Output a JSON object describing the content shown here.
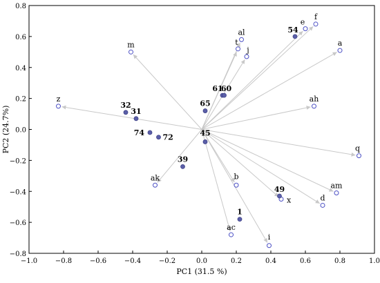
{
  "chart_data": {
    "type": "scatter",
    "xlabel": "PC1 (31.5 %)",
    "ylabel": "PC2 (24.7%)",
    "xlim": [
      -1.0,
      1.0
    ],
    "ylim": [
      -0.8,
      0.8
    ],
    "x_ticks": [
      "−1.0",
      "−0.8",
      "−0.6",
      "−0.4",
      "−0.2",
      "0.0",
      "0.2",
      "0.4",
      "0.6",
      "0.8",
      "1.0"
    ],
    "y_ticks": [
      "−0.8",
      "−0.6",
      "−0.4",
      "−0.2",
      "0.0",
      "0.2",
      "0.4",
      "0.6",
      "0.8"
    ],
    "grid": false,
    "variables": [
      {
        "label": "m",
        "x": -0.41,
        "y": 0.5
      },
      {
        "label": "al",
        "x": 0.23,
        "y": 0.58
      },
      {
        "label": "t",
        "x": 0.21,
        "y": 0.52
      },
      {
        "label": "j",
        "x": 0.26,
        "y": 0.47
      },
      {
        "label": "e",
        "x": 0.6,
        "y": 0.65
      },
      {
        "label": "f",
        "x": 0.66,
        "y": 0.68
      },
      {
        "label": "a",
        "x": 0.8,
        "y": 0.51
      },
      {
        "label": "z",
        "x": -0.83,
        "y": 0.15
      },
      {
        "label": "ah",
        "x": 0.65,
        "y": 0.15
      },
      {
        "label": "q",
        "x": 0.91,
        "y": -0.17
      },
      {
        "label": "ak",
        "x": -0.27,
        "y": -0.36
      },
      {
        "label": "b",
        "x": 0.2,
        "y": -0.36
      },
      {
        "label": "x",
        "x": 0.46,
        "y": -0.45
      },
      {
        "label": "am",
        "x": 0.78,
        "y": -0.41
      },
      {
        "label": "d",
        "x": 0.7,
        "y": -0.49
      },
      {
        "label": "ac",
        "x": 0.17,
        "y": -0.68
      },
      {
        "label": "i",
        "x": 0.39,
        "y": -0.75
      }
    ],
    "samples": [
      {
        "label": "54",
        "x": 0.54,
        "y": 0.6
      },
      {
        "label": "61",
        "x": 0.12,
        "y": 0.22
      },
      {
        "label": "60",
        "x": 0.13,
        "y": 0.22
      },
      {
        "label": "65",
        "x": 0.02,
        "y": 0.12
      },
      {
        "label": "32",
        "x": -0.44,
        "y": 0.11
      },
      {
        "label": "31",
        "x": -0.38,
        "y": 0.07
      },
      {
        "label": "74",
        "x": -0.3,
        "y": -0.02
      },
      {
        "label": "72",
        "x": -0.25,
        "y": -0.05
      },
      {
        "label": "45",
        "x": 0.02,
        "y": -0.08
      },
      {
        "label": "39",
        "x": -0.11,
        "y": -0.24
      },
      {
        "label": "49",
        "x": 0.45,
        "y": -0.43
      },
      {
        "label": "1",
        "x": 0.22,
        "y": -0.58
      }
    ],
    "colors": {
      "sample_fill": "#5b5fa8",
      "sample_stroke": "#3f4288",
      "variable_stroke": "#4b4fc4",
      "arrow": "#c8c8c8",
      "axis": "#000000"
    }
  }
}
